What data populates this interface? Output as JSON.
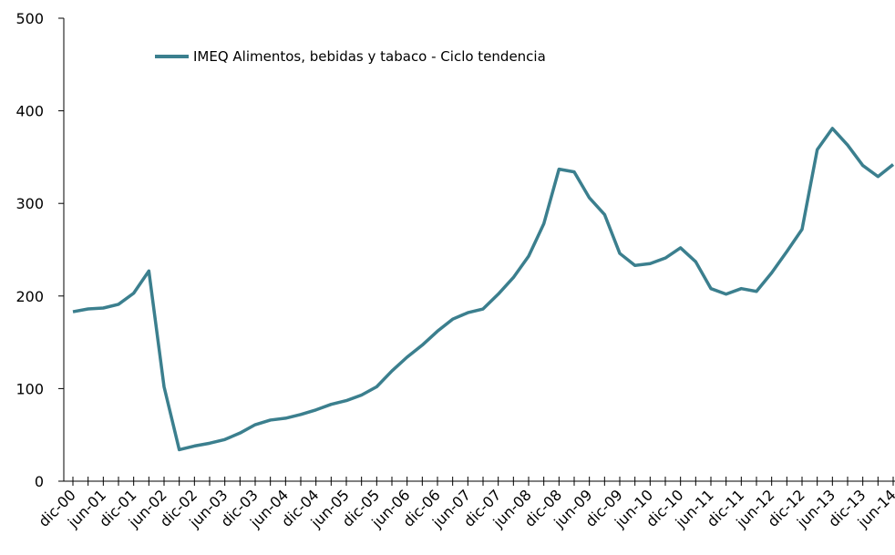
{
  "chart_data": {
    "type": "line",
    "categories": [
      "dic-00",
      null,
      "jun-01",
      null,
      "dic-01",
      null,
      "jun-02",
      null,
      "dic-02",
      null,
      "jun-03",
      null,
      "dic-03",
      null,
      "jun-04",
      null,
      "dic-04",
      null,
      "jun-05",
      null,
      "dic-05",
      null,
      "jun-06",
      null,
      "dic-06",
      null,
      "jun-07",
      null,
      "dic-07",
      null,
      "jun-08",
      null,
      "dic-08",
      null,
      "jun-09",
      null,
      "dic-09",
      null,
      "jun-10",
      null,
      "dic-10",
      null,
      "jun-11",
      null,
      "dic-11",
      null,
      "jun-12",
      null,
      "dic-12",
      null,
      "jun-13",
      null,
      "dic-13",
      null,
      "jun-14"
    ],
    "series": [
      {
        "name": "IMEQ Alimentos, bebidas y tabaco - Ciclo tendencia",
        "color": "#3b7f8e",
        "values": [
          183,
          186,
          187,
          191,
          203,
          227,
          102,
          34,
          38,
          41,
          45,
          52,
          61,
          66,
          68,
          72,
          77,
          83,
          87,
          93,
          102,
          119,
          134,
          147,
          162,
          175,
          182,
          186,
          202,
          220,
          243,
          278,
          337,
          334,
          306,
          288,
          246,
          233,
          235,
          241,
          252,
          237,
          208,
          202,
          208,
          205,
          225,
          248,
          272,
          358,
          381,
          363,
          341,
          329,
          342
        ]
      }
    ],
    "ylim": [
      0,
      500
    ],
    "yticks": [
      0,
      100,
      200,
      300,
      400,
      500
    ],
    "grid": false,
    "legend": "top"
  }
}
